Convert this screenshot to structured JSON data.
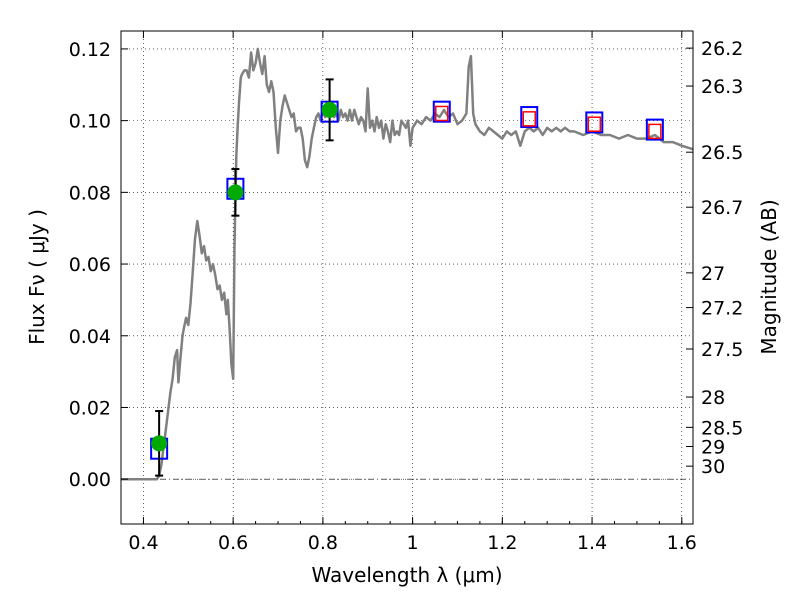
{
  "chart_data": {
    "type": "scatter",
    "xlabel": "Wavelength  λ (μm)",
    "ylabel": "Flux  Fν  ( μJy )",
    "y2label": "Magnitude (AB)",
    "xlim": [
      0.35,
      1.625
    ],
    "ylim": [
      -0.0125,
      0.125
    ],
    "grid": true,
    "x_ticks": [
      0.4,
      0.6,
      0.8,
      1.0,
      1.2,
      1.4,
      1.6
    ],
    "x_tick_labels": [
      "0.4",
      "0.6",
      "0.8",
      "1",
      "1.2",
      "1.4",
      "1.6"
    ],
    "y_ticks": [
      0.0,
      0.02,
      0.04,
      0.06,
      0.08,
      0.1,
      0.12
    ],
    "y_tick_labels": [
      "0.00",
      "0.02",
      "0.04",
      "0.06",
      "0.08",
      "0.10",
      "0.12"
    ],
    "magnitude_ticks": [
      "26.2",
      "26.3",
      "26.5",
      "26.7",
      "27",
      "27.2",
      "27.5",
      "28",
      "28.5",
      "29",
      "30"
    ],
    "magnitude_zero_point": 23.9,
    "zero_line": 0.0,
    "colors": {
      "spectrum": "#808080",
      "observed": "#00aa00",
      "model_box": "#0000ff",
      "model_inner": "#ff0000",
      "errorbar": "#000000"
    },
    "series": [
      {
        "kind": "spectrum-line",
        "points": [
          [
            0.35,
            0.0
          ],
          [
            0.43,
            0.0
          ],
          [
            0.435,
            0.001
          ],
          [
            0.44,
            0.004
          ],
          [
            0.445,
            0.009
          ],
          [
            0.45,
            0.014
          ],
          [
            0.455,
            0.019
          ],
          [
            0.46,
            0.024
          ],
          [
            0.465,
            0.028
          ],
          [
            0.47,
            0.034
          ],
          [
            0.475,
            0.036
          ],
          [
            0.478,
            0.027
          ],
          [
            0.482,
            0.033
          ],
          [
            0.487,
            0.04
          ],
          [
            0.49,
            0.042
          ],
          [
            0.495,
            0.045
          ],
          [
            0.5,
            0.043
          ],
          [
            0.505,
            0.049
          ],
          [
            0.51,
            0.058
          ],
          [
            0.515,
            0.067
          ],
          [
            0.52,
            0.072
          ],
          [
            0.525,
            0.068
          ],
          [
            0.53,
            0.063
          ],
          [
            0.535,
            0.065
          ],
          [
            0.54,
            0.061
          ],
          [
            0.545,
            0.062
          ],
          [
            0.55,
            0.058
          ],
          [
            0.555,
            0.06
          ],
          [
            0.56,
            0.057
          ],
          [
            0.565,
            0.053
          ],
          [
            0.57,
            0.054
          ],
          [
            0.575,
            0.05
          ],
          [
            0.58,
            0.052
          ],
          [
            0.585,
            0.046
          ],
          [
            0.588,
            0.05
          ],
          [
            0.592,
            0.042
          ],
          [
            0.596,
            0.032
          ],
          [
            0.6,
            0.028
          ],
          [
            0.603,
            0.065
          ],
          [
            0.607,
            0.09
          ],
          [
            0.61,
            0.098
          ],
          [
            0.613,
            0.105
          ],
          [
            0.617,
            0.112
          ],
          [
            0.62,
            0.113
          ],
          [
            0.625,
            0.114
          ],
          [
            0.63,
            0.114
          ],
          [
            0.635,
            0.112
          ],
          [
            0.64,
            0.119
          ],
          [
            0.645,
            0.114
          ],
          [
            0.65,
            0.116
          ],
          [
            0.655,
            0.12
          ],
          [
            0.66,
            0.116
          ],
          [
            0.665,
            0.113
          ],
          [
            0.67,
            0.118
          ],
          [
            0.675,
            0.11
          ],
          [
            0.68,
            0.108
          ],
          [
            0.685,
            0.111
          ],
          [
            0.69,
            0.108
          ],
          [
            0.695,
            0.098
          ],
          [
            0.7,
            0.091
          ],
          [
            0.705,
            0.1
          ],
          [
            0.71,
            0.104
          ],
          [
            0.715,
            0.107
          ],
          [
            0.72,
            0.105
          ],
          [
            0.725,
            0.103
          ],
          [
            0.73,
            0.101
          ],
          [
            0.735,
            0.102
          ],
          [
            0.74,
            0.097
          ],
          [
            0.745,
            0.098
          ],
          [
            0.75,
            0.098
          ],
          [
            0.755,
            0.095
          ],
          [
            0.76,
            0.089
          ],
          [
            0.765,
            0.087
          ],
          [
            0.77,
            0.09
          ],
          [
            0.775,
            0.095
          ],
          [
            0.78,
            0.098
          ],
          [
            0.785,
            0.101
          ],
          [
            0.79,
            0.102
          ],
          [
            0.795,
            0.1
          ],
          [
            0.8,
            0.103
          ],
          [
            0.805,
            0.101
          ],
          [
            0.81,
            0.104
          ],
          [
            0.815,
            0.102
          ],
          [
            0.82,
            0.104
          ],
          [
            0.825,
            0.101
          ],
          [
            0.83,
            0.102
          ],
          [
            0.835,
            0.1
          ],
          [
            0.84,
            0.103
          ],
          [
            0.845,
            0.101
          ],
          [
            0.85,
            0.102
          ],
          [
            0.855,
            0.1
          ],
          [
            0.86,
            0.103
          ],
          [
            0.865,
            0.1
          ],
          [
            0.87,
            0.103
          ],
          [
            0.875,
            0.101
          ],
          [
            0.88,
            0.099
          ],
          [
            0.885,
            0.101
          ],
          [
            0.89,
            0.1
          ],
          [
            0.895,
            0.097
          ],
          [
            0.9,
            0.109
          ],
          [
            0.905,
            0.098
          ],
          [
            0.91,
            0.1
          ],
          [
            0.915,
            0.097
          ],
          [
            0.92,
            0.101
          ],
          [
            0.925,
            0.098
          ],
          [
            0.93,
            0.1
          ],
          [
            0.935,
            0.095
          ],
          [
            0.94,
            0.099
          ],
          [
            0.945,
            0.097
          ],
          [
            0.95,
            0.094
          ],
          [
            0.955,
            0.1
          ],
          [
            0.96,
            0.096
          ],
          [
            0.965,
            0.097
          ],
          [
            0.97,
            0.096
          ],
          [
            0.975,
            0.1
          ],
          [
            0.98,
            0.099
          ],
          [
            0.985,
            0.098
          ],
          [
            0.99,
            0.1
          ],
          [
            0.995,
            0.093
          ],
          [
            1.0,
            0.098
          ],
          [
            1.005,
            0.099
          ],
          [
            1.01,
            0.1
          ],
          [
            1.02,
            0.099
          ],
          [
            1.03,
            0.101
          ],
          [
            1.04,
            0.1
          ],
          [
            1.05,
            0.102
          ],
          [
            1.06,
            0.101
          ],
          [
            1.07,
            0.103
          ],
          [
            1.08,
            0.101
          ],
          [
            1.09,
            0.102
          ],
          [
            1.1,
            0.099
          ],
          [
            1.11,
            0.1
          ],
          [
            1.12,
            0.102
          ],
          [
            1.125,
            0.115
          ],
          [
            1.13,
            0.118
          ],
          [
            1.135,
            0.102
          ],
          [
            1.14,
            0.099
          ],
          [
            1.15,
            0.097
          ],
          [
            1.16,
            0.096
          ],
          [
            1.17,
            0.098
          ],
          [
            1.18,
            0.097
          ],
          [
            1.19,
            0.096
          ],
          [
            1.2,
            0.095
          ],
          [
            1.21,
            0.097
          ],
          [
            1.22,
            0.096
          ],
          [
            1.23,
            0.097
          ],
          [
            1.24,
            0.093
          ],
          [
            1.25,
            0.097
          ],
          [
            1.26,
            0.098
          ],
          [
            1.27,
            0.097
          ],
          [
            1.28,
            0.098
          ],
          [
            1.29,
            0.096
          ],
          [
            1.3,
            0.098
          ],
          [
            1.31,
            0.097
          ],
          [
            1.32,
            0.098
          ],
          [
            1.33,
            0.097
          ],
          [
            1.34,
            0.098
          ],
          [
            1.35,
            0.097
          ],
          [
            1.36,
            0.097
          ],
          [
            1.38,
            0.096
          ],
          [
            1.4,
            0.097
          ],
          [
            1.42,
            0.096
          ],
          [
            1.44,
            0.096
          ],
          [
            1.46,
            0.095
          ],
          [
            1.48,
            0.096
          ],
          [
            1.5,
            0.095
          ],
          [
            1.52,
            0.095
          ],
          [
            1.54,
            0.096
          ],
          [
            1.56,
            0.094
          ],
          [
            1.58,
            0.094
          ],
          [
            1.6,
            0.093
          ],
          [
            1.625,
            0.092
          ]
        ]
      },
      {
        "kind": "observed-points",
        "points": [
          {
            "x": 0.435,
            "y": 0.01,
            "err": 0.009
          },
          {
            "x": 0.605,
            "y": 0.08,
            "err": 0.0065
          },
          {
            "x": 0.815,
            "y": 0.103,
            "err": 0.0085
          }
        ]
      },
      {
        "kind": "model-boxes",
        "points": [
          {
            "x": 0.435,
            "y": 0.0085
          },
          {
            "x": 0.605,
            "y": 0.081
          },
          {
            "x": 0.815,
            "y": 0.1025
          },
          {
            "x": 1.065,
            "y": 0.1025
          },
          {
            "x": 1.26,
            "y": 0.101
          },
          {
            "x": 1.405,
            "y": 0.0995
          },
          {
            "x": 1.54,
            "y": 0.0975
          }
        ]
      },
      {
        "kind": "model-inner-boxes",
        "points": [
          {
            "x": 1.065,
            "y": 0.102
          },
          {
            "x": 1.26,
            "y": 0.1005
          },
          {
            "x": 1.405,
            "y": 0.099
          },
          {
            "x": 1.54,
            "y": 0.097
          }
        ]
      }
    ]
  }
}
